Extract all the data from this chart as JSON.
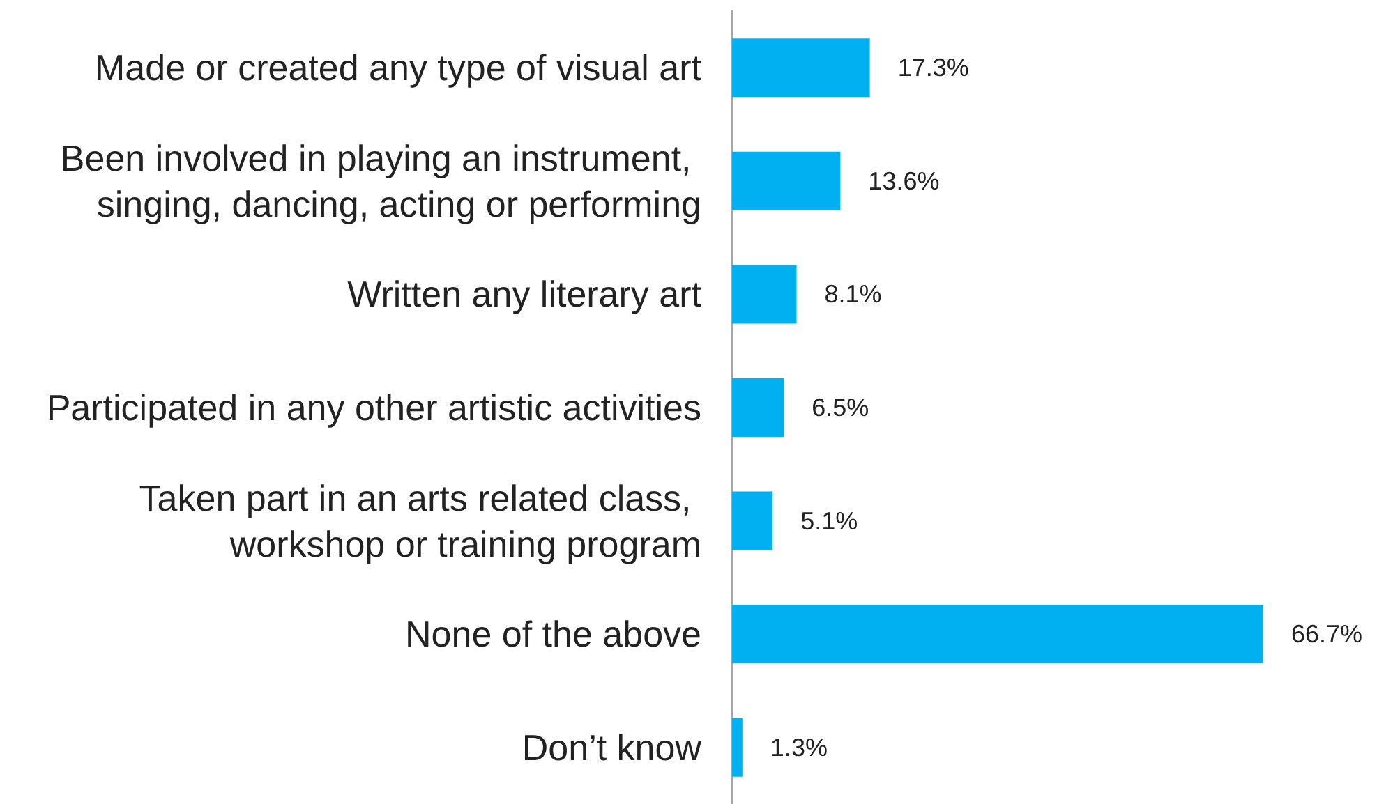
{
  "chart_data": {
    "type": "bar",
    "orientation": "horizontal",
    "categories": [
      "Made or created any type of visual art",
      "Been involved in playing an instrument, singing, dancing, acting or performing",
      "Written any literary art",
      "Participated in any other artistic activities",
      "Taken part in an arts related class, workshop or training program",
      "None of the above",
      "Don’t know"
    ],
    "values": [
      17.3,
      13.6,
      8.1,
      6.5,
      5.1,
      66.7,
      1.3
    ],
    "value_labels": [
      "17.3%",
      "13.6%",
      "8.1%",
      "6.5%",
      "5.1%",
      "66.7%",
      "1.3%"
    ],
    "color": "#00b0f0"
  }
}
